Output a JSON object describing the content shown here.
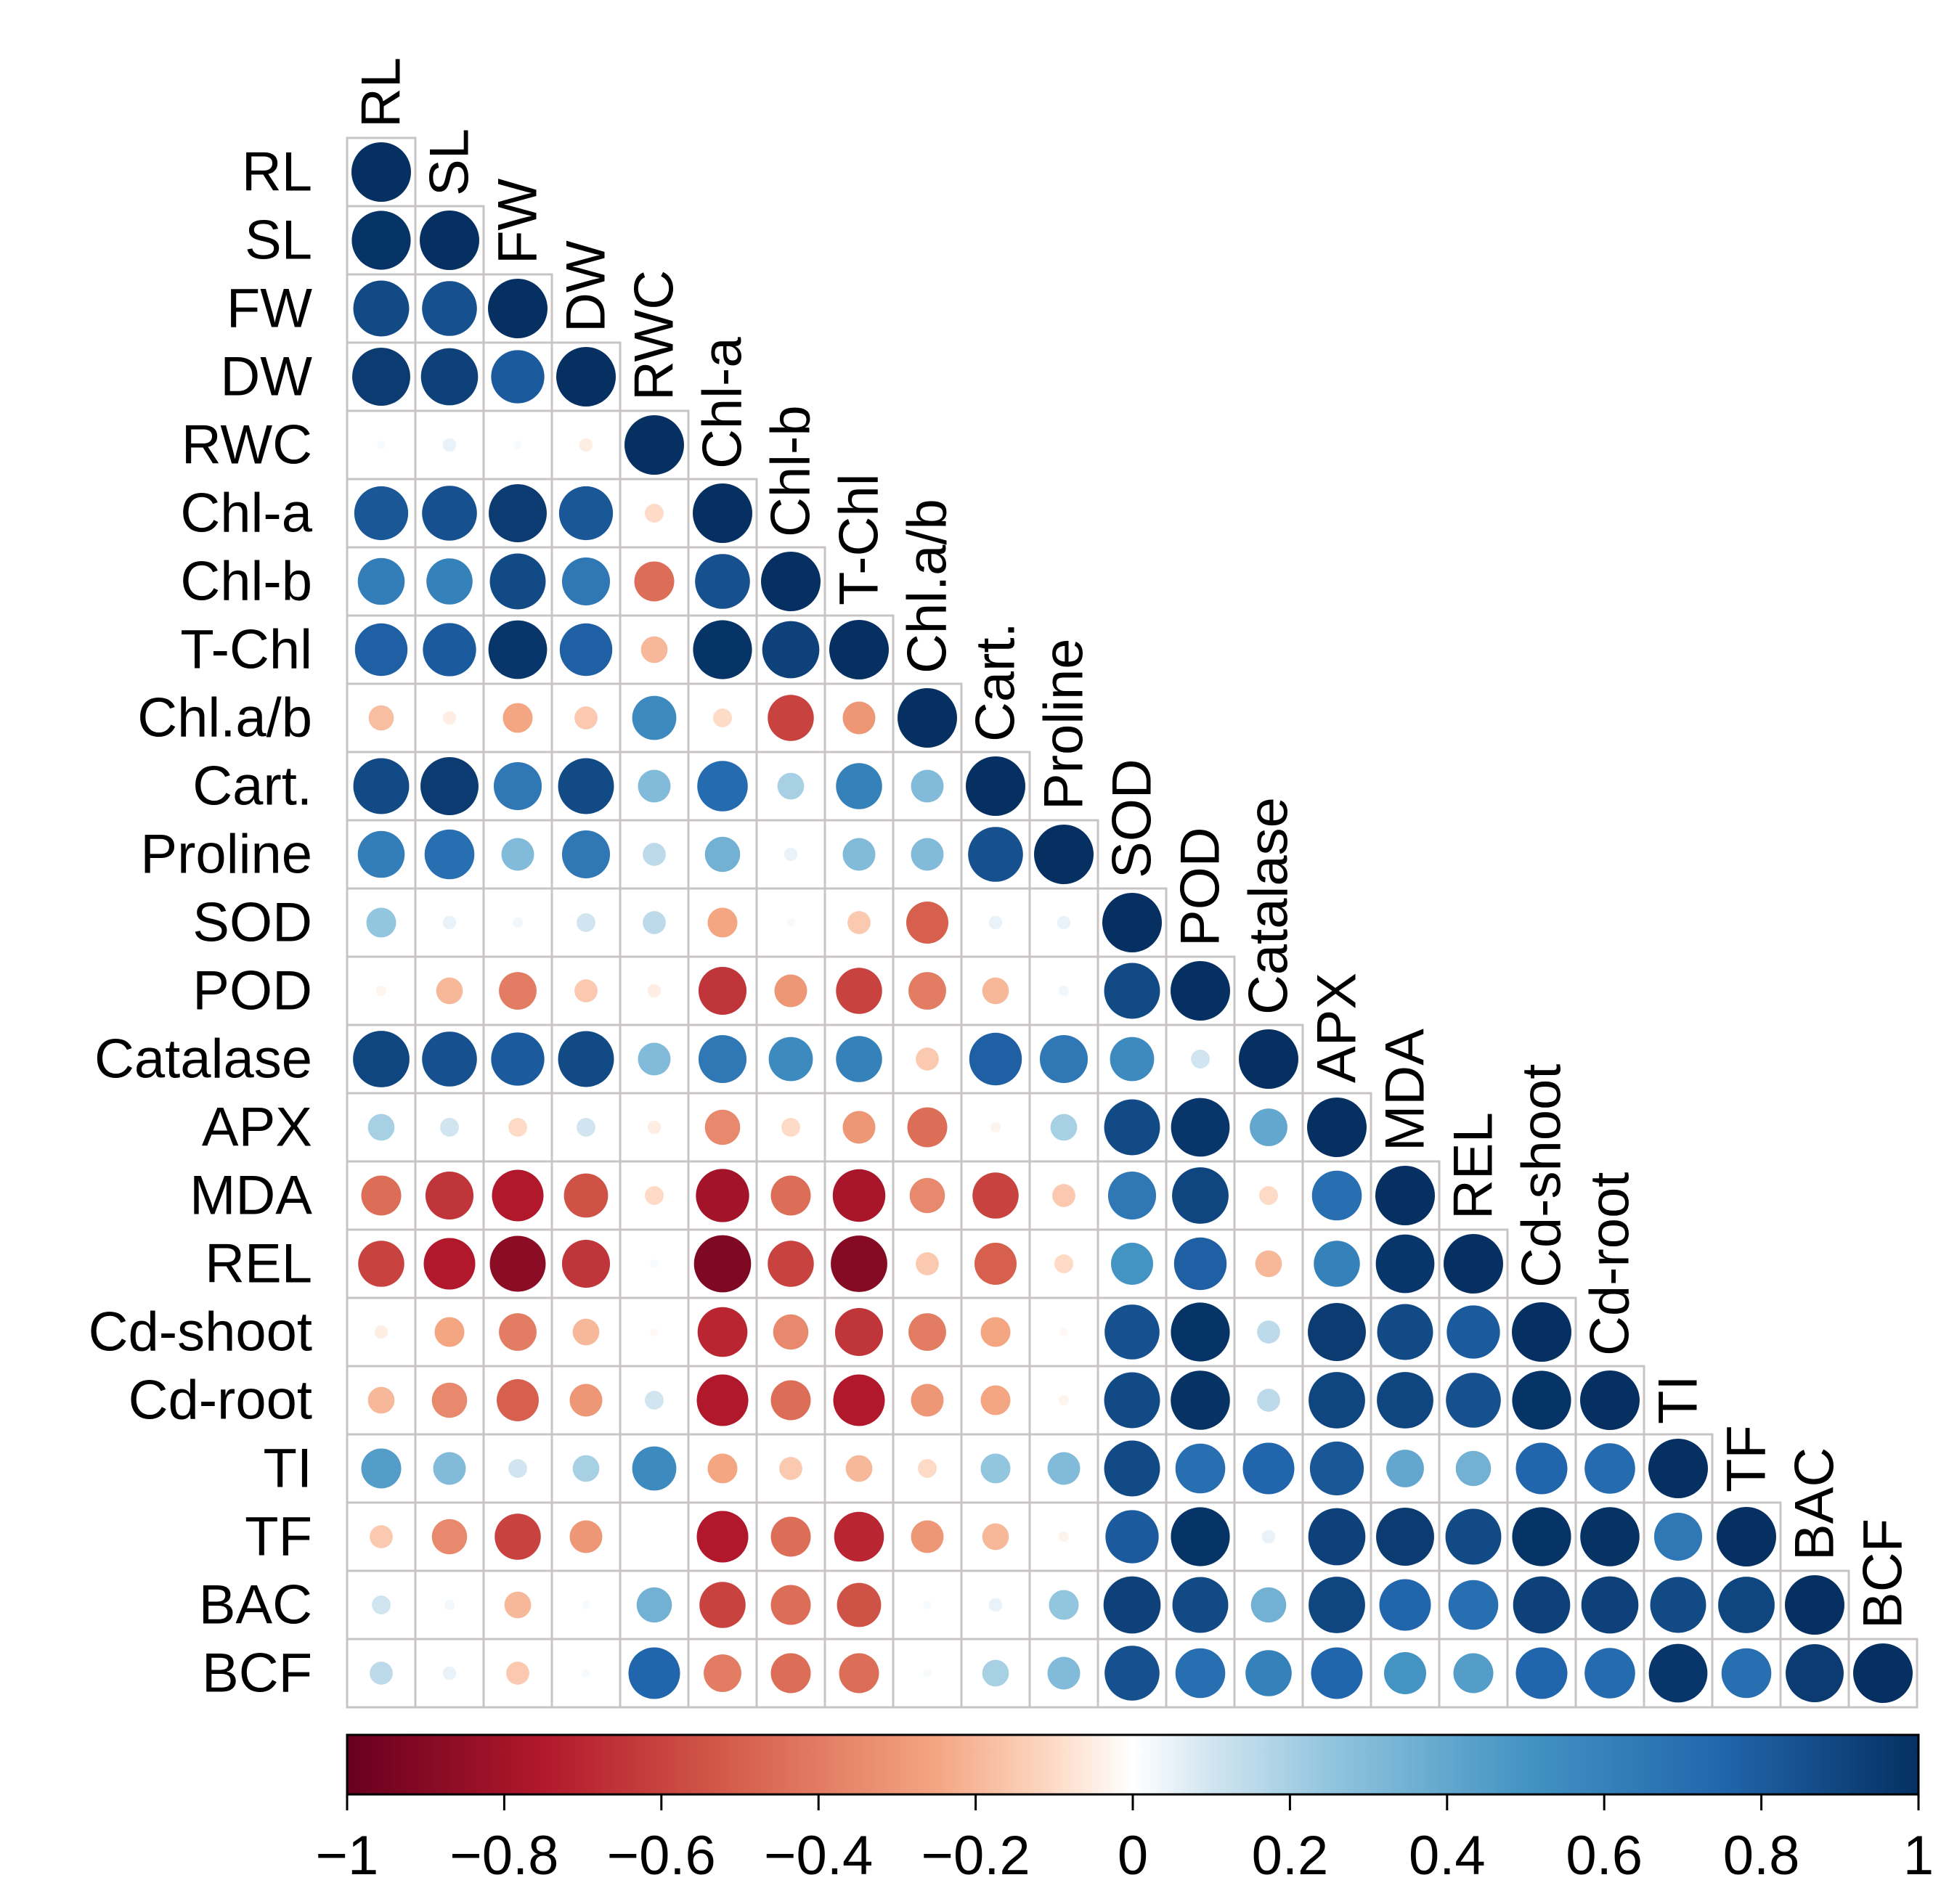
{
  "chart_data": {
    "type": "heatmap",
    "title": "",
    "style": "lower-triangle correlation matrix, circle glyphs",
    "variables": [
      "RL",
      "SL",
      "FW",
      "DW",
      "RWC",
      "Chl-a",
      "Chl-b",
      "T-Chl",
      "Chl.a/b",
      "Cart.",
      "Proline",
      "SOD",
      "POD",
      "Catalase",
      "APX",
      "MDA",
      "REL",
      "Cd-shoot",
      "Cd-root",
      "TI",
      "TF",
      "BAC",
      "BCF"
    ],
    "matrix": [
      [
        1
      ],
      [
        0.98,
        1
      ],
      [
        0.88,
        0.85,
        1
      ],
      [
        0.95,
        0.92,
        0.8,
        1
      ],
      [
        0.02,
        0.05,
        0.02,
        -0.05,
        1
      ],
      [
        0.82,
        0.85,
        0.95,
        0.82,
        -0.1,
        1
      ],
      [
        0.62,
        0.6,
        0.88,
        0.65,
        -0.45,
        0.85,
        1
      ],
      [
        0.78,
        0.8,
        0.97,
        0.78,
        -0.2,
        0.98,
        0.92,
        1
      ],
      [
        -0.18,
        -0.05,
        -0.25,
        -0.15,
        0.55,
        -0.1,
        -0.6,
        -0.3,
        1
      ],
      [
        0.88,
        0.95,
        0.65,
        0.88,
        0.3,
        0.72,
        0.2,
        0.6,
        0.3,
        1
      ],
      [
        0.62,
        0.7,
        0.3,
        0.65,
        0.15,
        0.35,
        0.05,
        0.3,
        0.3,
        0.85,
        1
      ],
      [
        0.25,
        0.05,
        0.03,
        0.1,
        0.15,
        -0.25,
        0.02,
        -0.15,
        -0.5,
        0.05,
        0.05,
        1
      ],
      [
        -0.03,
        -0.2,
        -0.4,
        -0.15,
        -0.05,
        -0.65,
        -0.3,
        -0.6,
        -0.4,
        -0.2,
        0.03,
        0.88,
        1
      ],
      [
        0.9,
        0.85,
        0.8,
        0.88,
        0.3,
        0.65,
        0.55,
        0.6,
        -0.15,
        0.78,
        0.65,
        0.55,
        0.1,
        1
      ],
      [
        0.2,
        0.1,
        -0.1,
        0.1,
        -0.05,
        -0.35,
        -0.1,
        -0.3,
        -0.45,
        -0.03,
        0.2,
        0.88,
        0.97,
        0.4,
        1
      ],
      [
        -0.45,
        -0.65,
        -0.75,
        -0.55,
        -0.1,
        -0.8,
        -0.45,
        -0.78,
        -0.35,
        -0.6,
        -0.15,
        0.65,
        0.9,
        -0.1,
        0.7,
        1
      ],
      [
        -0.6,
        -0.75,
        -0.88,
        -0.65,
        0.02,
        -0.92,
        -0.6,
        -0.9,
        -0.15,
        -0.5,
        -0.1,
        0.5,
        0.78,
        -0.2,
        0.6,
        0.97,
        1
      ],
      [
        -0.05,
        -0.25,
        -0.4,
        -0.2,
        -0.02,
        -0.7,
        -0.35,
        -0.65,
        -0.4,
        -0.25,
        -0.02,
        0.85,
        0.98,
        0.15,
        0.95,
        0.88,
        0.8,
        1
      ],
      [
        -0.2,
        -0.35,
        -0.5,
        -0.3,
        0.1,
        -0.75,
        -0.45,
        -0.75,
        -0.3,
        -0.25,
        -0.03,
        0.88,
        0.99,
        0.15,
        0.9,
        0.9,
        0.85,
        0.98,
        1
      ],
      [
        0.45,
        0.3,
        0.1,
        0.2,
        0.55,
        -0.25,
        -0.15,
        -0.2,
        -0.1,
        0.25,
        0.3,
        0.88,
        0.7,
        0.75,
        0.82,
        0.4,
        0.35,
        0.75,
        0.72,
        1
      ],
      [
        -0.15,
        -0.35,
        -0.6,
        -0.3,
        0,
        -0.75,
        -0.45,
        -0.7,
        -0.3,
        -0.2,
        -0.03,
        0.8,
        0.98,
        0.05,
        0.92,
        0.95,
        0.88,
        0.98,
        0.99,
        0.65,
        1
      ],
      [
        0.1,
        0.03,
        -0.2,
        0.02,
        0.35,
        -0.6,
        -0.45,
        -0.55,
        0.02,
        0.05,
        0.25,
        0.92,
        0.88,
        0.35,
        0.9,
        0.75,
        0.7,
        0.92,
        0.92,
        0.88,
        0.9,
        1
      ],
      [
        0.15,
        0.05,
        -0.15,
        0.02,
        0.75,
        -0.4,
        -0.45,
        -0.45,
        0.02,
        0.2,
        0.3,
        0.85,
        0.7,
        0.6,
        0.75,
        0.5,
        0.45,
        0.75,
        0.72,
        0.97,
        0.7,
        0.95,
        1
      ]
    ],
    "color_scale": {
      "type": "diverging",
      "min": -1,
      "max": 1,
      "stops": [
        {
          "value": -1,
          "color": "#67001f"
        },
        {
          "value": -0.75,
          "color": "#b2182b"
        },
        {
          "value": -0.5,
          "color": "#d6604d"
        },
        {
          "value": -0.25,
          "color": "#f4a582"
        },
        {
          "value": -0.1,
          "color": "#fddbc7"
        },
        {
          "value": 0,
          "color": "#ffffff"
        },
        {
          "value": 0.1,
          "color": "#d1e5f0"
        },
        {
          "value": 0.25,
          "color": "#92c5de"
        },
        {
          "value": 0.5,
          "color": "#4393c3"
        },
        {
          "value": 0.75,
          "color": "#2166ac"
        },
        {
          "value": 1,
          "color": "#053061"
        }
      ]
    },
    "colorbar_ticks": [
      "−1",
      "−0.8",
      "−0.6",
      "−0.4",
      "−0.2",
      "0",
      "0.2",
      "0.4",
      "0.6",
      "0.8",
      "1"
    ],
    "colorbar_tick_values": [
      -1,
      -0.8,
      -0.6,
      -0.4,
      -0.2,
      0,
      0.2,
      0.4,
      0.6,
      0.8,
      1
    ],
    "colorbar_placement": "bottom",
    "grid": true
  }
}
